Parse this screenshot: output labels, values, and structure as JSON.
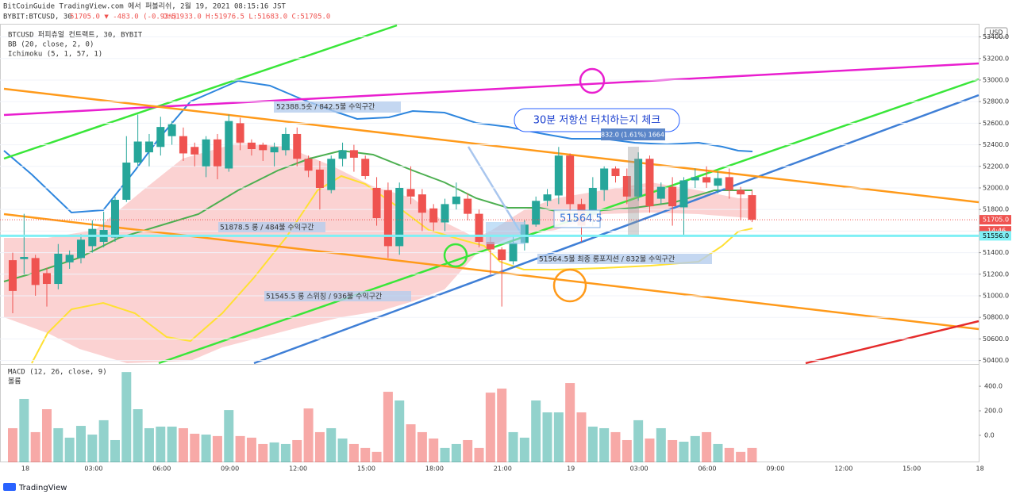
{
  "chart_data": {
    "type": "candlestick",
    "title": "BitCoinGuide TradingView.com 에서 퍼블리쉬, 2월 19, 2021 08:15:16 JST",
    "symbol": "BYBIT:BTCUSD, 30",
    "change": "51705.0 ▼ -483.0 (-0.93%)",
    "ohlc": "O:51933.0 H:51976.5 L:51683.0 C:51705.0",
    "legend": [
      "BTCUSD 퍼피츄얼 컨트랙트, 30, BYBIT",
      "BB (20, close, 2, 0)",
      "Ichimoku (5, 1, 57, 1)"
    ],
    "lower_legend": [
      "MACD (12, 26, close, 9)",
      "볼륨"
    ],
    "currency": "USD",
    "brand": "TradingView",
    "annotations": [
      "52388.5숏 / 842.5불 수익구간",
      "51878.5 롱 / 484불 수익구간",
      "51545.5 롱 스위칭 / 936불 수익구간",
      "51564.5불 최종 롱포지션 / 832불 수익구간",
      "30분 저항선 터치하는지 체크",
      "832.0 (1.61%) 1664",
      "51564.5"
    ],
    "price_tags": [
      {
        "value": 51705,
        "label": "51705.0"
      },
      {
        "label": "14:46"
      },
      {
        "value": 51556,
        "label": "51556.0"
      }
    ],
    "time_labels": [
      "18",
      "03:00",
      "06:00",
      "09:00",
      "12:00",
      "15:00",
      "18:00",
      "21:00",
      "19",
      "03:00",
      "06:00",
      "09:00",
      "12:00",
      "15:00",
      "18"
    ],
    "up_color": "#26a69a",
    "down_color": "#ef5350",
    "ylim": [
      50375,
      53507
    ],
    "yticks": [
      {
        "value": 50400,
        "label": "50400.0"
      },
      {
        "value": 50600,
        "label": "50600.0"
      },
      {
        "value": 50800,
        "label": "50800.0"
      },
      {
        "value": 51000,
        "label": "51000.0"
      },
      {
        "value": 51200,
        "label": "51200.0"
      },
      {
        "value": 51400,
        "label": "51400.0"
      },
      {
        "value": 51600,
        "label": "51600.0"
      },
      {
        "value": 51800,
        "label": "51800.0"
      },
      {
        "value": 52000,
        "label": "52000.0"
      },
      {
        "value": 52200,
        "label": "52200.0"
      },
      {
        "value": 52400,
        "label": "52400.0"
      },
      {
        "value": 52600,
        "label": "52600.0"
      },
      {
        "value": 52800,
        "label": "52800.0"
      },
      {
        "value": 53000,
        "label": "53000.0"
      },
      {
        "value": 53200,
        "label": "53200.0"
      },
      {
        "value": 53400,
        "label": "53400.0"
      }
    ],
    "open": [
      51330,
      51340,
      51350,
      51210,
      51110,
      51310,
      51350,
      51460,
      51500,
      51540,
      51890,
      52235,
      52330,
      52380,
      52480,
      52480,
      52380,
      52200,
      52450,
      52180,
      52600,
      52420,
      52400,
      52330,
      52350,
      52500,
      52270,
      52170,
      51980,
      52270,
      52350,
      52270,
      52000,
      51980,
      51460,
      51990,
      51940,
      51810,
      51680,
      51850,
      51900,
      51760,
      51500,
      51430,
      51320,
      51490,
      51660,
      51880,
      51930,
      52300,
      51850,
      51750,
      51980,
      52180,
      52110,
      51920,
      52270,
      51900,
      52010,
      51820,
      52070,
      52100,
      52020,
      52100,
      51980,
      51933
    ],
    "high": [
      51400,
      51760,
      51380,
      51260,
      51480,
      51420,
      51570,
      51700,
      51780,
      51920,
      52480,
      52680,
      52500,
      52660,
      52620,
      52560,
      52420,
      52480,
      52500,
      52680,
      52650,
      52450,
      52420,
      52420,
      52560,
      52560,
      52300,
      52250,
      52300,
      52420,
      52400,
      52300,
      52100,
      52050,
      52050,
      52200,
      51990,
      51850,
      51900,
      52050,
      51950,
      51800,
      51560,
      51450,
      51550,
      51700,
      51920,
      51990,
      52380,
      52320,
      51900,
      52100,
      52200,
      52200,
      52180,
      52330,
      52300,
      52050,
      52100,
      52100,
      52180,
      52200,
      52150,
      52180,
      52010,
      51976.5
    ],
    "low": [
      50838,
      51200,
      51000,
      50900,
      51060,
      51250,
      51300,
      51400,
      51450,
      51500,
      51870,
      52200,
      52200,
      52300,
      52400,
      52250,
      52200,
      52100,
      52080,
      52150,
      52350,
      52300,
      52250,
      52200,
      52300,
      52200,
      52100,
      51800,
      51950,
      52200,
      52150,
      52080,
      51650,
      51350,
      51380,
      51850,
      51600,
      51600,
      51600,
      51800,
      51700,
      51450,
      51200,
      50900,
      51290,
      51420,
      51640,
      51830,
      51850,
      51750,
      51500,
      51650,
      51880,
      52050,
      51850,
      51880,
      51770,
      51850,
      51650,
      51550,
      52000,
      52000,
      51950,
      51900,
      51700,
      51683
    ],
    "close": [
      51045,
      51360,
      51100,
      51110,
      51390,
      51380,
      51520,
      51620,
      51610,
      51890,
      52235,
      52430,
      52430,
      52565,
      52590,
      52320,
      52310,
      52450,
      52200,
      52620,
      52420,
      52360,
      52350,
      52380,
      52500,
      52270,
      52160,
      52000,
      52270,
      52350,
      52280,
      52110,
      51720,
      51460,
      52000,
      51920,
      51770,
      51680,
      51850,
      51920,
      51760,
      51500,
      51430,
      51330,
      51490,
      51660,
      51880,
      51940,
      52300,
      51850,
      51650,
      52000,
      52180,
      52110,
      51920,
      52270,
      51830,
      52010,
      51830,
      52070,
      52100,
      52050,
      52090,
      51980,
      51940,
      51705
    ],
    "y2lim": [
      -220,
      575
    ],
    "y2ticks": [
      {
        "value": 0,
        "label": "0.0"
      },
      {
        "value": 200,
        "label": "200.0"
      },
      {
        "value": 400,
        "label": "400.0"
      }
    ],
    "volume": [
      58,
      297,
      26,
      213,
      58,
      -19,
      77,
      6,
      123,
      -39,
      516,
      213,
      58,
      71,
      71,
      58,
      13,
      6,
      -6,
      206,
      -6,
      -19,
      -71,
      -58,
      -71,
      -39,
      219,
      26,
      58,
      -26,
      -71,
      -103,
      -135,
      355,
      284,
      90,
      26,
      -26,
      -103,
      -71,
      -39,
      -103,
      348,
      381,
      26,
      -19,
      284,
      187,
      187,
      426,
      187,
      71,
      58,
      26,
      -39,
      123,
      -26,
      58,
      -39,
      -52,
      -6,
      26,
      -71,
      -103,
      -135,
      -103
    ]
  }
}
